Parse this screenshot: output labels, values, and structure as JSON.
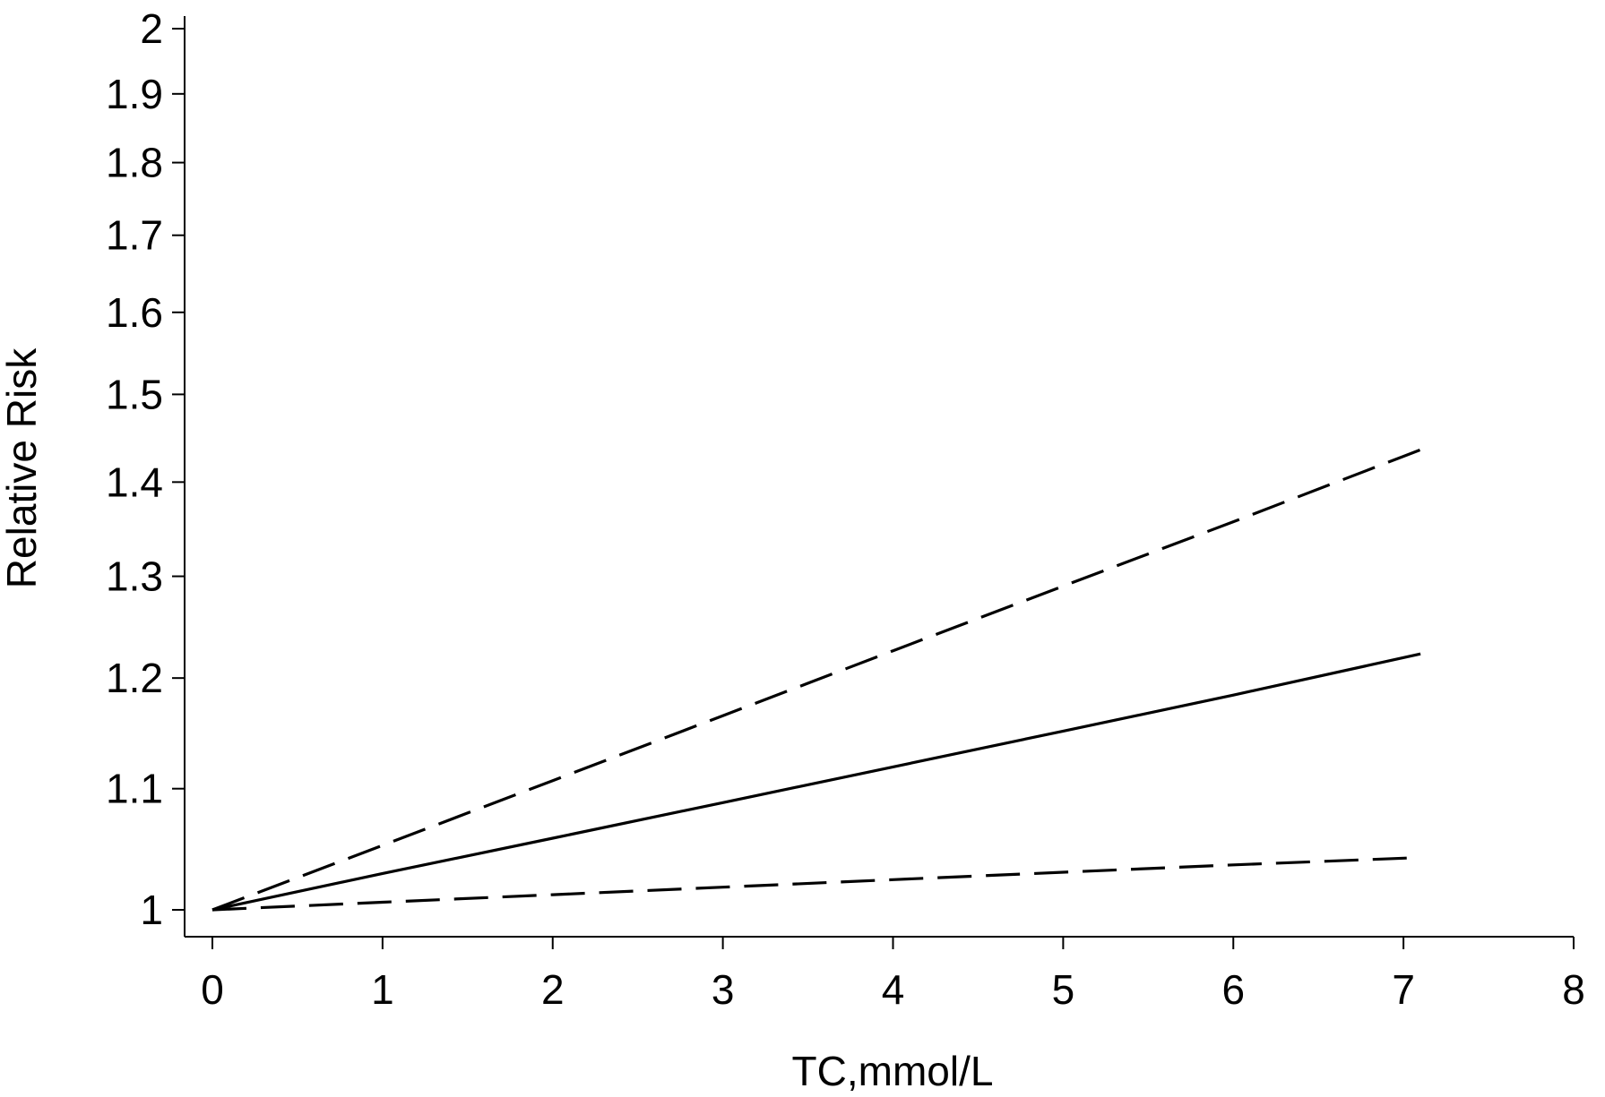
{
  "chart_data": {
    "type": "line",
    "xlabel": "TC,mmol/L",
    "ylabel": "Relative Risk",
    "xlim": [
      0,
      8
    ],
    "ylim": [
      1,
      2
    ],
    "y_scale": "log",
    "grid": false,
    "legend": "none",
    "x_ticks": [
      "0",
      "1",
      "2",
      "3",
      "4",
      "5",
      "6",
      "7",
      "8"
    ],
    "y_ticks": [
      "1",
      "1.1",
      "1.2",
      "1.3",
      "1.4",
      "1.5",
      "1.6",
      "1.7",
      "1.8",
      "1.9",
      "2"
    ],
    "series": [
      {
        "style": "dashed",
        "x": [
          0,
          1,
          2,
          3,
          4,
          5,
          6,
          7.1
        ],
        "y": [
          1,
          1.052,
          1.107,
          1.165,
          1.226,
          1.29,
          1.357,
          1.436
        ]
      },
      {
        "style": "solid",
        "x": [
          0,
          1,
          2,
          3,
          4,
          5,
          6,
          7.1
        ],
        "y": [
          1,
          1.029,
          1.058,
          1.088,
          1.119,
          1.151,
          1.184,
          1.223
        ]
      },
      {
        "style": "dashed",
        "x": [
          0,
          1,
          2,
          3,
          4,
          5,
          6,
          7.1
        ],
        "y": [
          1,
          1.006,
          1.012,
          1.018,
          1.024,
          1.03,
          1.036,
          1.042
        ]
      }
    ],
    "colors": {
      "line": "#000000",
      "axis": "#000000",
      "background": "#ffffff"
    }
  }
}
